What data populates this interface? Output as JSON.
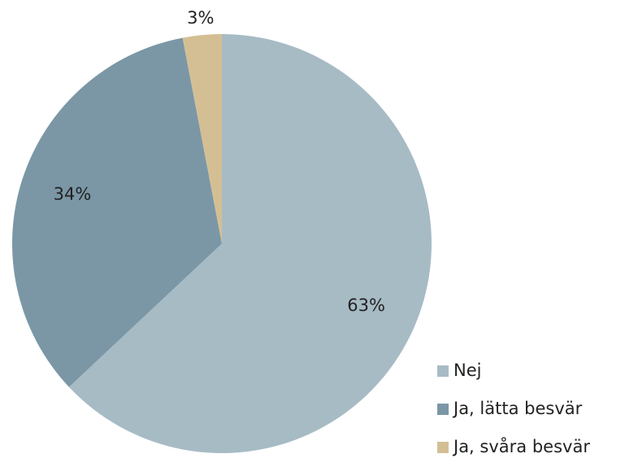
{
  "chart_data": {
    "type": "pie",
    "categories": [
      "Nej",
      "Ja, lätta besvär",
      "Ja, svåra besvär"
    ],
    "values": [
      63,
      34,
      3
    ],
    "value_labels": [
      "63%",
      "34%",
      "3%"
    ],
    "colors": [
      "#a7bbc5",
      "#7b97a6",
      "#d4bf94"
    ],
    "legend": "bottom-right"
  }
}
